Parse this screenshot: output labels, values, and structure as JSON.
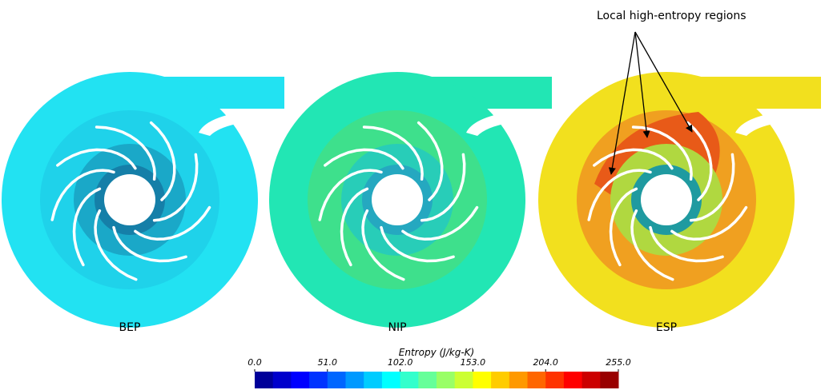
{
  "figure": {
    "panels": [
      "BEP",
      "NIP",
      "ESP"
    ],
    "annotation": "Local high-entropy regions",
    "colorbar": {
      "title": "Entropy (J/kg-K)",
      "range": [
        0,
        255
      ],
      "ticks": [
        {
          "value": 0,
          "label": "0.0"
        },
        {
          "value": 51,
          "label": "51.0"
        },
        {
          "value": 102,
          "label": "102.0"
        },
        {
          "value": 153,
          "label": "153.0"
        },
        {
          "value": 204,
          "label": "204.0"
        },
        {
          "value": 255,
          "label": "255.0"
        }
      ]
    }
  }
}
